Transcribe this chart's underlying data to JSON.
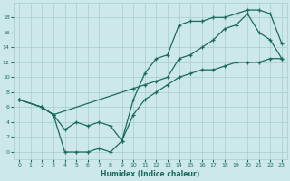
{
  "xlabel": "Humidex (Indice chaleur)",
  "bg_color": "#cce8e8",
  "grid_color": "#a8cccc",
  "line_color": "#1a6b5a",
  "xlim": [
    -0.5,
    23.5
  ],
  "ylim": [
    -1,
    20
  ],
  "xticks": [
    0,
    1,
    2,
    3,
    4,
    5,
    6,
    7,
    8,
    9,
    10,
    11,
    12,
    13,
    14,
    15,
    16,
    17,
    18,
    19,
    20,
    21,
    22,
    23
  ],
  "yticks": [
    0,
    2,
    4,
    6,
    8,
    10,
    12,
    14,
    16,
    18
  ],
  "line1_x": [
    0,
    2,
    3,
    4,
    5,
    6,
    7,
    8,
    9,
    10,
    11,
    12,
    13,
    14,
    15,
    16,
    17,
    18,
    19,
    20,
    21,
    22,
    23
  ],
  "line1_y": [
    7,
    6,
    5,
    3,
    4,
    3.5,
    4,
    3.5,
    1.5,
    7,
    10.5,
    12.5,
    13,
    17,
    17.5,
    17.5,
    18,
    18,
    18.5,
    19,
    19,
    18.5,
    14.5
  ],
  "line2_x": [
    0,
    2,
    3,
    10,
    11,
    12,
    13,
    14,
    15,
    16,
    17,
    18,
    19,
    20,
    21,
    22,
    23
  ],
  "line2_y": [
    7,
    6,
    5,
    8.5,
    9,
    9.5,
    10,
    12.5,
    13,
    14,
    15,
    16.5,
    17,
    18.5,
    16,
    15,
    12.5
  ],
  "line3_x": [
    0,
    2,
    3,
    4,
    5,
    6,
    7,
    8,
    9,
    10,
    11,
    12,
    13,
    14,
    15,
    16,
    17,
    18,
    19,
    20,
    21,
    22,
    23
  ],
  "line3_y": [
    7,
    6,
    5,
    0,
    0,
    0,
    0.5,
    0,
    1.5,
    5,
    7,
    8,
    9,
    10,
    10.5,
    11,
    11,
    11.5,
    12,
    12,
    12,
    12.5,
    12.5
  ]
}
